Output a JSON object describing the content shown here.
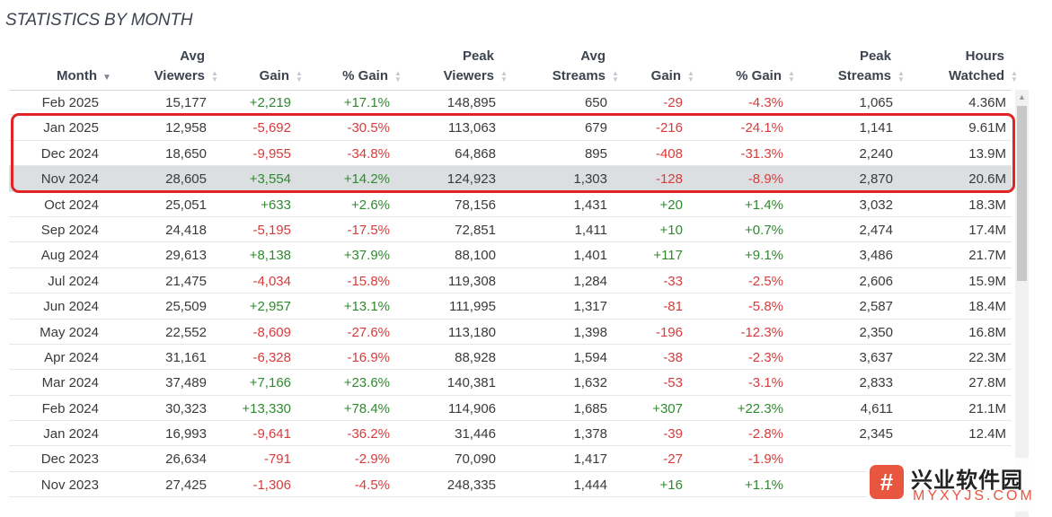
{
  "title": "STATISTICS BY MONTH",
  "headers": [
    {
      "line1": "",
      "line2": "Month",
      "sort": "active"
    },
    {
      "line1": "Avg",
      "line2": "Viewers",
      "sort": "none"
    },
    {
      "line1": "",
      "line2": "Gain",
      "sort": "none"
    },
    {
      "line1": "",
      "line2": "% Gain",
      "sort": "none"
    },
    {
      "line1": "Peak",
      "line2": "Viewers",
      "sort": "none"
    },
    {
      "line1": "Avg",
      "line2": "Streams",
      "sort": "none"
    },
    {
      "line1": "",
      "line2": "Gain",
      "sort": "none"
    },
    {
      "line1": "",
      "line2": "% Gain",
      "sort": "none"
    },
    {
      "line1": "Peak",
      "line2": "Streams",
      "sort": "none"
    },
    {
      "line1": "Hours",
      "line2": "Watched",
      "sort": "none"
    }
  ],
  "rows": [
    {
      "cells": [
        "Feb 2025",
        "15,177",
        "+2,219",
        "+17.1%",
        "148,895",
        "650",
        "-29",
        "-4.3%",
        "1,065",
        "4.36M"
      ],
      "selected": false
    },
    {
      "cells": [
        "Jan 2025",
        "12,958",
        "-5,692",
        "-30.5%",
        "113,063",
        "679",
        "-216",
        "-24.1%",
        "1,141",
        "9.61M"
      ],
      "selected": false
    },
    {
      "cells": [
        "Dec 2024",
        "18,650",
        "-9,955",
        "-34.8%",
        "64,868",
        "895",
        "-408",
        "-31.3%",
        "2,240",
        "13.9M"
      ],
      "selected": false
    },
    {
      "cells": [
        "Nov 2024",
        "28,605",
        "+3,554",
        "+14.2%",
        "124,923",
        "1,303",
        "-128",
        "-8.9%",
        "2,870",
        "20.6M"
      ],
      "selected": true
    },
    {
      "cells": [
        "Oct 2024",
        "25,051",
        "+633",
        "+2.6%",
        "78,156",
        "1,431",
        "+20",
        "+1.4%",
        "3,032",
        "18.3M"
      ],
      "selected": false
    },
    {
      "cells": [
        "Sep 2024",
        "24,418",
        "-5,195",
        "-17.5%",
        "72,851",
        "1,411",
        "+10",
        "+0.7%",
        "2,474",
        "17.4M"
      ],
      "selected": false
    },
    {
      "cells": [
        "Aug 2024",
        "29,613",
        "+8,138",
        "+37.9%",
        "88,100",
        "1,401",
        "+117",
        "+9.1%",
        "3,486",
        "21.7M"
      ],
      "selected": false
    },
    {
      "cells": [
        "Jul 2024",
        "21,475",
        "-4,034",
        "-15.8%",
        "119,308",
        "1,284",
        "-33",
        "-2.5%",
        "2,606",
        "15.9M"
      ],
      "selected": false
    },
    {
      "cells": [
        "Jun 2024",
        "25,509",
        "+2,957",
        "+13.1%",
        "111,995",
        "1,317",
        "-81",
        "-5.8%",
        "2,587",
        "18.4M"
      ],
      "selected": false
    },
    {
      "cells": [
        "May 2024",
        "22,552",
        "-8,609",
        "-27.6%",
        "113,180",
        "1,398",
        "-196",
        "-12.3%",
        "2,350",
        "16.8M"
      ],
      "selected": false
    },
    {
      "cells": [
        "Apr 2024",
        "31,161",
        "-6,328",
        "-16.9%",
        "88,928",
        "1,594",
        "-38",
        "-2.3%",
        "3,637",
        "22.3M"
      ],
      "selected": false
    },
    {
      "cells": [
        "Mar 2024",
        "37,489",
        "+7,166",
        "+23.6%",
        "140,381",
        "1,632",
        "-53",
        "-3.1%",
        "2,833",
        "27.8M"
      ],
      "selected": false
    },
    {
      "cells": [
        "Feb 2024",
        "30,323",
        "+13,330",
        "+78.4%",
        "114,906",
        "1,685",
        "+307",
        "+22.3%",
        "4,611",
        "21.1M"
      ],
      "selected": false
    },
    {
      "cells": [
        "Jan 2024",
        "16,993",
        "-9,641",
        "-36.2%",
        "31,446",
        "1,378",
        "-39",
        "-2.8%",
        "2,345",
        "12.4M"
      ],
      "selected": false
    },
    {
      "cells": [
        "Dec 2023",
        "26,634",
        "-791",
        "-2.9%",
        "70,090",
        "1,417",
        "-27",
        "-1.9%",
        "",
        ""
      ],
      "selected": false
    },
    {
      "cells": [
        "Nov 2023",
        "27,425",
        "-1,306",
        "-4.5%",
        "248,335",
        "1,444",
        "+16",
        "+1.1%",
        "",
        ""
      ],
      "selected": false
    }
  ],
  "colors": {
    "positive": "#2f8a2f",
    "negative": "#d83b3b",
    "highlight_border": "#e02424",
    "selected_row": "#dcdfe2"
  },
  "watermark": {
    "logo_glyph": "#",
    "text": "兴业软件园",
    "sub": "MYXYJS.COM"
  }
}
